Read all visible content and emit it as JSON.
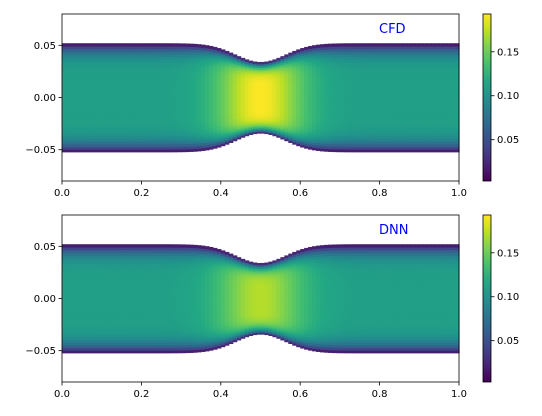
{
  "chart_data": [
    {
      "type": "heatmap",
      "annotation": "CFD",
      "annotation_color": "#0000ff",
      "xlim": [
        0.0,
        1.0
      ],
      "ylim": [
        -0.08,
        0.08
      ],
      "xticks": [
        "0.0",
        "0.2",
        "0.4",
        "0.6",
        "0.8",
        "1.0"
      ],
      "xtick_values": [
        0.0,
        0.2,
        0.4,
        0.6,
        0.8,
        1.0
      ],
      "yticks": [
        "0.05",
        "0.00",
        "−0.05"
      ],
      "ytick_values": [
        0.05,
        0.0,
        -0.05
      ],
      "colorbar": {
        "colormap": "viridis",
        "range": [
          0.003,
          0.193
        ],
        "ticks": [
          "0.05",
          "0.10",
          "0.15"
        ],
        "tick_values": [
          0.05,
          0.1,
          0.15
        ]
      },
      "domain": {
        "wall_half_height": 0.052,
        "throat_half_height": 0.034,
        "throat_center_x": 0.5,
        "constriction_width": 0.09
      },
      "field": {
        "peak_value": 0.193,
        "centerline_value": 0.11,
        "near_wall_value": 0.003
      }
    },
    {
      "type": "heatmap",
      "annotation": "DNN",
      "annotation_color": "#0000ff",
      "xlim": [
        0.0,
        1.0
      ],
      "ylim": [
        -0.08,
        0.08
      ],
      "xticks": [
        "0.0",
        "0.2",
        "0.4",
        "0.6",
        "0.8",
        "1.0"
      ],
      "xtick_values": [
        0.0,
        0.2,
        0.4,
        0.6,
        0.8,
        1.0
      ],
      "yticks": [
        "0.05",
        "0.00",
        "−0.05"
      ],
      "ytick_values": [
        0.05,
        0.0,
        -0.05
      ],
      "colorbar": {
        "colormap": "viridis",
        "range": [
          0.003,
          0.193
        ],
        "ticks": [
          "0.05",
          "0.10",
          "0.15"
        ],
        "tick_values": [
          0.05,
          0.1,
          0.15
        ]
      },
      "domain": {
        "wall_half_height": 0.052,
        "throat_half_height": 0.034,
        "throat_center_x": 0.5,
        "constriction_width": 0.09
      },
      "field": {
        "peak_value": 0.172,
        "centerline_value": 0.11,
        "near_wall_value": 0.003
      }
    }
  ]
}
